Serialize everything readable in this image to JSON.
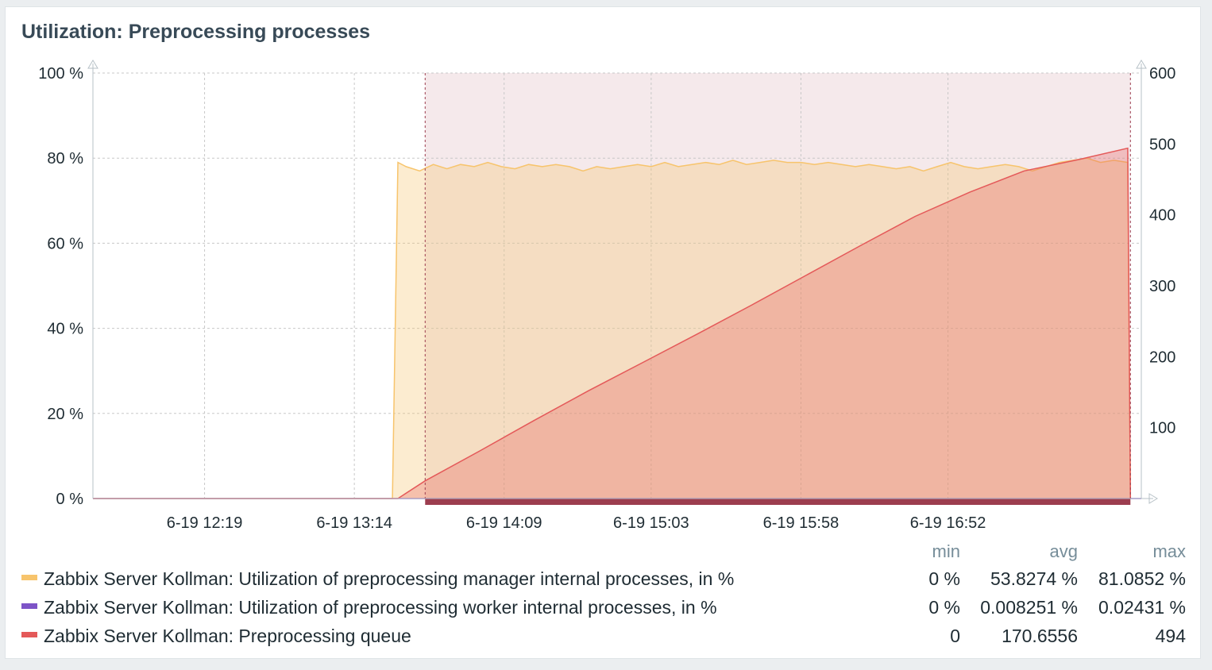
{
  "widget": {
    "title": "Utilization: Preprocessing processes"
  },
  "legend": {
    "headers": {
      "min": "min",
      "avg": "avg",
      "max": "max"
    },
    "items": [
      {
        "name": "Zabbix Server Kollman: Utilization of preprocessing manager internal processes, in %",
        "color": "#f7c46c",
        "min": "0 %",
        "avg": "53.8274 %",
        "max": "81.0852 %"
      },
      {
        "name": "Zabbix Server Kollman: Utilization of preprocessing worker internal processes, in %",
        "color": "#7d54c7",
        "min": "0 %",
        "avg": "0.008251 %",
        "max": "0.02431 %"
      },
      {
        "name": "Zabbix Server Kollman: Preprocessing queue",
        "color": "#e45959",
        "min": "0",
        "avg": "170.6556",
        "max": "494"
      }
    ]
  },
  "chart_data": {
    "type": "area",
    "title": "Utilization: Preprocessing processes",
    "x_ticks": [
      "6-19 12:19",
      "6-19 13:14",
      "6-19 14:09",
      "6-19 15:03",
      "6-19 15:58",
      "6-19 16:52"
    ],
    "x_minutes": {
      "start": 698,
      "end": 1083,
      "ticks": [
        739,
        794,
        849,
        903,
        958,
        1012
      ]
    },
    "y_left": {
      "ticks": [
        "0 %",
        "20 %",
        "40 %",
        "60 %",
        "80 %",
        "100 %"
      ],
      "range": [
        0,
        100
      ]
    },
    "y_right": {
      "ticks": [
        "100",
        "200",
        "300",
        "400",
        "500",
        "600"
      ],
      "range": [
        0,
        600
      ]
    },
    "highlight_period": {
      "start_minute": 820,
      "end_minute": 1079,
      "color": "#9c3d4f"
    },
    "series": [
      {
        "name": "Zabbix Server Kollman: Utilization of preprocessing manager internal processes, in %",
        "axis": "left",
        "color": "#f7c46c",
        "points": [
          [
            698,
            0
          ],
          [
            808,
            0
          ],
          [
            810,
            79
          ],
          [
            813,
            78
          ],
          [
            818,
            77
          ],
          [
            823,
            78.5
          ],
          [
            828,
            77.5
          ],
          [
            833,
            78.5
          ],
          [
            838,
            78
          ],
          [
            843,
            79
          ],
          [
            848,
            78
          ],
          [
            853,
            77.5
          ],
          [
            858,
            78.5
          ],
          [
            863,
            78
          ],
          [
            868,
            78.5
          ],
          [
            873,
            78
          ],
          [
            878,
            77
          ],
          [
            883,
            78
          ],
          [
            888,
            77.5
          ],
          [
            893,
            78
          ],
          [
            898,
            78.5
          ],
          [
            903,
            78
          ],
          [
            908,
            79
          ],
          [
            913,
            78
          ],
          [
            918,
            78.5
          ],
          [
            923,
            79
          ],
          [
            928,
            78.5
          ],
          [
            933,
            79.5
          ],
          [
            938,
            78.5
          ],
          [
            943,
            79
          ],
          [
            948,
            79.5
          ],
          [
            953,
            79
          ],
          [
            958,
            79
          ],
          [
            963,
            78.5
          ],
          [
            968,
            79
          ],
          [
            973,
            78.5
          ],
          [
            978,
            78
          ],
          [
            983,
            78.5
          ],
          [
            988,
            78
          ],
          [
            993,
            77.5
          ],
          [
            998,
            78
          ],
          [
            1003,
            77
          ],
          [
            1008,
            78
          ],
          [
            1013,
            79
          ],
          [
            1018,
            78
          ],
          [
            1023,
            77.5
          ],
          [
            1028,
            78
          ],
          [
            1033,
            78.5
          ],
          [
            1038,
            78
          ],
          [
            1043,
            77
          ],
          [
            1048,
            78
          ],
          [
            1053,
            79
          ],
          [
            1058,
            79.5
          ],
          [
            1063,
            80
          ],
          [
            1068,
            79
          ],
          [
            1073,
            79.5
          ],
          [
            1078,
            79
          ],
          [
            1079,
            0
          ]
        ]
      },
      {
        "name": "Zabbix Server Kollman: Utilization of preprocessing worker internal processes, in %",
        "axis": "left",
        "color": "#7d54c7",
        "points": [
          [
            698,
            0
          ],
          [
            1083,
            0
          ]
        ]
      },
      {
        "name": "Zabbix Server Kollman: Preprocessing queue",
        "axis": "right",
        "color": "#e45959",
        "points": [
          [
            698,
            0
          ],
          [
            810,
            0
          ],
          [
            812,
            5
          ],
          [
            820,
            25
          ],
          [
            840,
            67
          ],
          [
            860,
            110
          ],
          [
            880,
            152
          ],
          [
            900,
            192
          ],
          [
            920,
            232
          ],
          [
            940,
            273
          ],
          [
            960,
            315
          ],
          [
            980,
            357
          ],
          [
            1000,
            398
          ],
          [
            1020,
            432
          ],
          [
            1040,
            462
          ],
          [
            1060,
            478
          ],
          [
            1078,
            494
          ],
          [
            1079,
            0
          ]
        ]
      }
    ]
  }
}
